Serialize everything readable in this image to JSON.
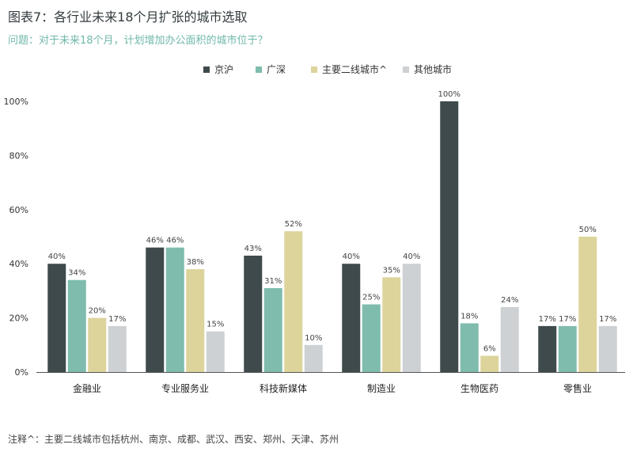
{
  "header": {
    "title": "图表7：各行业未来18个月扩张的城市选取",
    "subtitle": "问题：对于未来18个月，计划增加办公面积的城市位于？"
  },
  "footer": {
    "note": "注释^：主要二线城市包括杭州、南京、成都、武汉、西安、郑州、天津、苏州"
  },
  "chart_data": {
    "type": "bar",
    "categories": [
      "金融业",
      "专业服务业",
      "科技新媒体",
      "制造业",
      "生物医药",
      "零售业"
    ],
    "series": [
      {
        "name": "京沪",
        "color": "#3f4a4c",
        "values": [
          40,
          46,
          43,
          40,
          100,
          17
        ]
      },
      {
        "name": "广深",
        "color": "#7fbcae",
        "values": [
          34,
          46,
          31,
          25,
          18,
          17
        ]
      },
      {
        "name": "主要二线城市^",
        "color": "#ddd49c",
        "values": [
          20,
          38,
          52,
          35,
          6,
          50
        ]
      },
      {
        "name": "其他城市",
        "color": "#cdd1d3",
        "values": [
          17,
          15,
          10,
          40,
          24,
          17
        ]
      }
    ],
    "ylim": [
      0,
      100
    ],
    "yticks": [
      "0%",
      "20%",
      "40%",
      "60%",
      "80%",
      "100%"
    ],
    "value_suffix": "%",
    "legend_position": "top-center",
    "grid": false
  }
}
